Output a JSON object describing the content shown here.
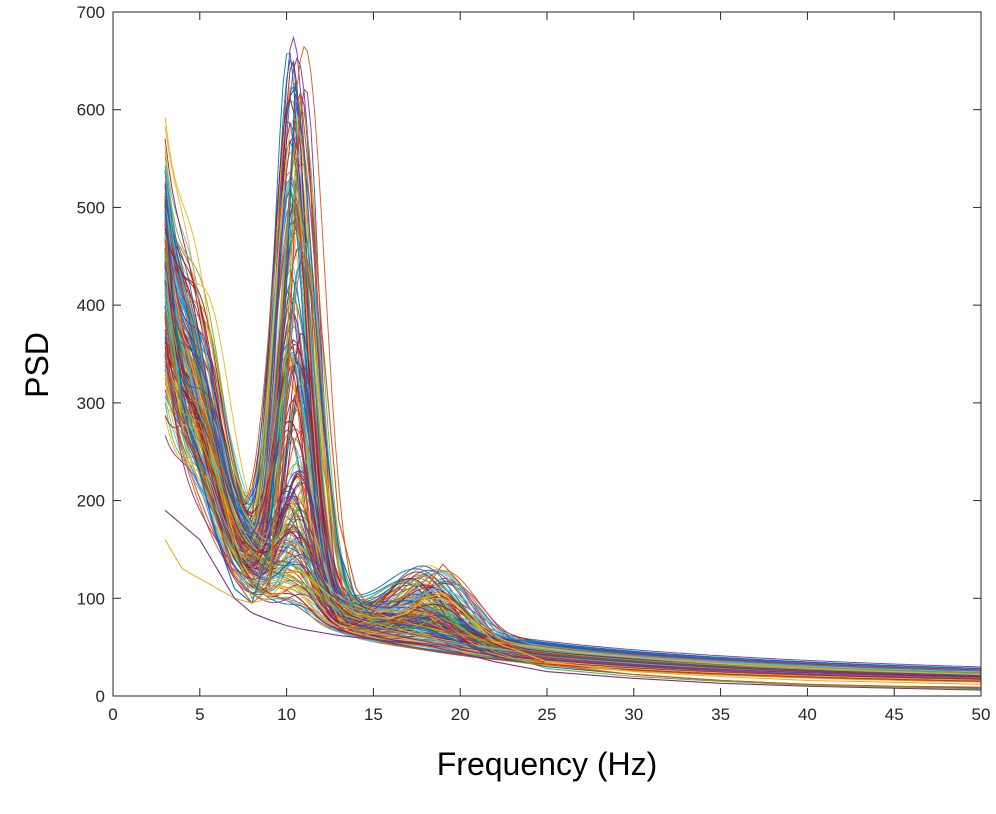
{
  "chart_data": {
    "type": "line",
    "title": "",
    "xlabel": "Frequency (Hz)",
    "ylabel": "PSD",
    "xlim": [
      0,
      50
    ],
    "ylim": [
      0,
      700
    ],
    "xticks": [
      0,
      5,
      10,
      15,
      20,
      25,
      30,
      35,
      40,
      45,
      50
    ],
    "yticks": [
      0,
      100,
      200,
      300,
      400,
      500,
      600,
      700
    ],
    "xtick_labels": [
      "0",
      "5",
      "10",
      "15",
      "20",
      "25",
      "30",
      "35",
      "40",
      "45",
      "50"
    ],
    "ytick_labels": [
      "0",
      "100",
      "200",
      "300",
      "400",
      "500",
      "600",
      "700"
    ],
    "grid": false,
    "legend": "none",
    "box": true,
    "x_range_data": [
      3,
      50
    ],
    "series_count": 200,
    "series_description": "Many overlapping power spectral density curves (one per recording), starting near 3 Hz, sharply decaying from about 160–510 at 3 Hz, with a dominant alpha peak near 10.5 Hz (peak heights about 90–630) and a smaller beta bump near 18–19 Hz (up to about 135), then decaying to about 5–12 at 50 Hz.",
    "representative_series": [
      {
        "x": [
          3,
          4,
          5,
          6,
          7,
          8,
          9,
          10,
          10.5,
          11,
          12,
          13,
          14,
          15,
          16,
          17,
          18,
          19,
          20,
          22,
          25,
          30,
          35,
          40,
          45,
          50
        ],
        "y": [
          505,
          300,
          230,
          160,
          110,
          95,
          150,
          420,
          628,
          560,
          300,
          150,
          100,
          80,
          75,
          72,
          70,
          62,
          55,
          40,
          30,
          22,
          16,
          12,
          9,
          8
        ]
      },
      {
        "x": [
          3,
          4,
          5,
          6,
          7,
          8,
          9,
          10,
          10.8,
          11.5,
          12,
          13,
          14,
          15,
          16,
          17,
          18,
          19,
          20,
          22,
          25,
          30,
          35,
          40,
          45,
          50
        ],
        "y": [
          350,
          270,
          240,
          180,
          120,
          95,
          110,
          300,
          617,
          500,
          380,
          180,
          110,
          85,
          75,
          78,
          110,
          135,
          115,
          60,
          32,
          22,
          16,
          12,
          10,
          9
        ]
      },
      {
        "x": [
          3,
          4,
          5,
          6,
          7,
          8,
          9,
          10,
          10.5,
          11,
          12,
          13,
          14,
          15,
          16,
          17,
          18,
          19,
          20,
          22,
          25,
          30,
          35,
          40,
          45,
          50
        ],
        "y": [
          160,
          130,
          120,
          110,
          100,
          95,
          100,
          120,
          130,
          125,
          110,
          95,
          85,
          80,
          80,
          85,
          100,
          105,
          90,
          55,
          35,
          25,
          20,
          16,
          14,
          12
        ]
      },
      {
        "x": [
          3,
          4,
          5,
          6,
          7,
          8,
          9,
          10,
          10.5,
          11,
          12,
          13,
          14,
          15,
          16,
          17,
          18,
          19,
          20,
          22,
          25,
          30,
          35,
          40,
          45,
          50
        ],
        "y": [
          190,
          175,
          160,
          130,
          100,
          85,
          78,
          72,
          70,
          68,
          65,
          62,
          60,
          58,
          56,
          54,
          52,
          48,
          44,
          35,
          25,
          18,
          13,
          10,
          8,
          6
        ]
      },
      {
        "x": [
          3,
          4,
          5,
          6,
          7,
          8,
          9,
          10,
          10.5,
          11,
          12,
          13,
          14,
          15,
          16,
          17,
          18,
          19,
          20,
          22,
          25,
          30,
          35,
          40,
          45,
          50
        ],
        "y": [
          420,
          290,
          280,
          220,
          150,
          100,
          120,
          350,
          540,
          470,
          250,
          130,
          90,
          75,
          70,
          68,
          75,
          80,
          70,
          45,
          28,
          20,
          15,
          11,
          9,
          7
        ]
      }
    ],
    "palette": [
      "#0072BD",
      "#D95319",
      "#EDB120",
      "#7E2F8E",
      "#77AC30",
      "#4DBEEE",
      "#A2142F"
    ],
    "axis_color": "#262626",
    "tick_color": "#262626"
  }
}
